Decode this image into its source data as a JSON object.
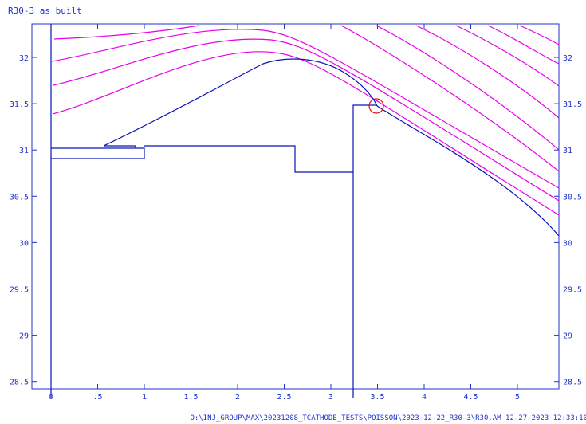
{
  "title": "R30-3 as built",
  "footer": "O:\\INJ_GROUP\\MAX\\20231208_TCATHODE_TESTS\\POISSON\\2023-12-22_R30-3\\R30.AM 12-27-2023  12:33:10",
  "x_ticks": [
    "0",
    ".5",
    "1",
    "1.5",
    "2",
    "2.5",
    "3",
    "3.5",
    "4",
    "4.5",
    "5"
  ],
  "y_ticks": [
    "32",
    "31.5",
    "31",
    "30.5",
    "30",
    "29.5",
    "29",
    "28.5"
  ],
  "colors": {
    "frame": "#2233cc",
    "geometry": "#0a14b4",
    "field_lines": "#e800e8",
    "marker": "#dd1111"
  }
}
